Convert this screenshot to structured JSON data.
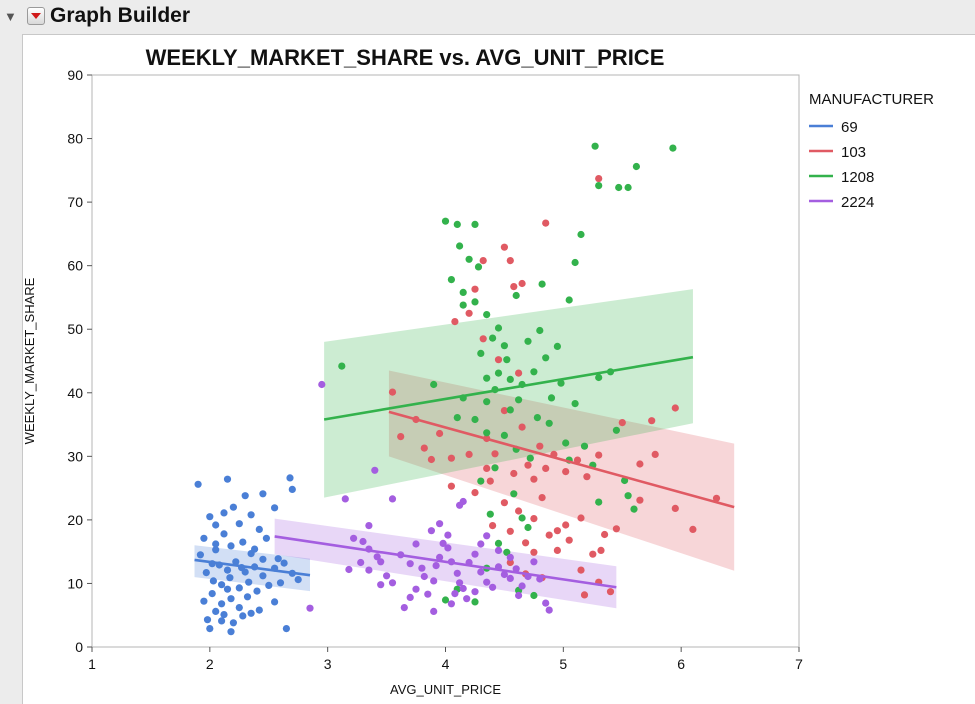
{
  "app": {
    "title": "Graph Builder"
  },
  "colors": {
    "69": "#4a7fd6",
    "103": "#e05a63",
    "1208": "#33b24c",
    "2224": "#a45ee0"
  },
  "chart_data": {
    "type": "scatter",
    "title": "WEEKLY_MARKET_SHARE vs. AVG_UNIT_PRICE",
    "xlabel": "AVG_UNIT_PRICE",
    "ylabel": "WEEKLY_MARKET_SHARE",
    "xlim": [
      1,
      7
    ],
    "ylim": [
      0,
      90
    ],
    "xticks": [
      1,
      2,
      3,
      4,
      5,
      6,
      7
    ],
    "yticks": [
      0,
      10,
      20,
      30,
      40,
      50,
      60,
      70,
      80,
      90
    ],
    "grid": false,
    "legend_title": "MANUFACTURER",
    "legend_position": "right",
    "series": [
      {
        "name": "69",
        "color": "#4a7fd6",
        "fit": {
          "x": [
            1.87,
            2.85
          ],
          "y": [
            13.7,
            11.3
          ],
          "band_lower": [
            11,
            8.8
          ],
          "band_upper": [
            16,
            13.9
          ]
        },
        "points": [
          [
            1.9,
            25.6
          ],
          [
            2.15,
            26.4
          ],
          [
            2.3,
            23.8
          ],
          [
            2.45,
            24.1
          ],
          [
            2.55,
            21.9
          ],
          [
            2.68,
            26.6
          ],
          [
            2.7,
            24.8
          ],
          [
            2.0,
            20.5
          ],
          [
            2.05,
            19.2
          ],
          [
            2.12,
            21.1
          ],
          [
            2.2,
            22
          ],
          [
            2.25,
            19.4
          ],
          [
            2.35,
            20.8
          ],
          [
            2.42,
            18.5
          ],
          [
            1.95,
            17.1
          ],
          [
            2.05,
            16.2
          ],
          [
            2.12,
            17.8
          ],
          [
            2.18,
            15.9
          ],
          [
            2.28,
            16.5
          ],
          [
            2.38,
            15.4
          ],
          [
            2.48,
            17.1
          ],
          [
            2.58,
            13.9
          ],
          [
            1.92,
            14.5
          ],
          [
            2.02,
            13.1
          ],
          [
            2.08,
            12.9
          ],
          [
            2.15,
            12.1
          ],
          [
            2.22,
            13.4
          ],
          [
            2.3,
            11.8
          ],
          [
            2.38,
            12.6
          ],
          [
            2.45,
            11.2
          ],
          [
            2.55,
            12.4
          ],
          [
            2.63,
            13.2
          ],
          [
            2.7,
            11.6
          ],
          [
            1.97,
            11.7
          ],
          [
            2.03,
            10.4
          ],
          [
            2.1,
            9.8
          ],
          [
            2.17,
            10.9
          ],
          [
            2.25,
            9.3
          ],
          [
            2.33,
            10.2
          ],
          [
            2.4,
            8.8
          ],
          [
            2.5,
            9.7
          ],
          [
            2.6,
            10.1
          ],
          [
            2.75,
            10.6
          ],
          [
            1.95,
            7.2
          ],
          [
            2.02,
            8.4
          ],
          [
            2.1,
            6.8
          ],
          [
            2.18,
            7.6
          ],
          [
            2.25,
            6.2
          ],
          [
            2.32,
            7.9
          ],
          [
            2.42,
            5.8
          ],
          [
            2.55,
            7.1
          ],
          [
            1.98,
            4.3
          ],
          [
            2.05,
            5.6
          ],
          [
            2.12,
            5.1
          ],
          [
            2.2,
            3.8
          ],
          [
            2.28,
            4.9
          ],
          [
            2.35,
            5.3
          ],
          [
            2.18,
            2.4
          ],
          [
            2.0,
            2.9
          ],
          [
            2.1,
            4.1
          ],
          [
            2.65,
            2.9
          ],
          [
            2.05,
            15.3
          ],
          [
            2.35,
            14.7
          ],
          [
            2.45,
            13.8
          ],
          [
            2.15,
            9.1
          ],
          [
            2.27,
            12.5
          ]
        ]
      },
      {
        "name": "103",
        "color": "#e05a63",
        "fit": {
          "x": [
            3.52,
            6.45
          ],
          "y": [
            37,
            22
          ],
          "band_lower": [
            30,
            12
          ],
          "band_upper": [
            43.5,
            32
          ]
        },
        "points": [
          [
            4.08,
            51.2
          ],
          [
            4.2,
            52.5
          ],
          [
            4.25,
            56.3
          ],
          [
            4.32,
            60.8
          ],
          [
            4.5,
            62.9
          ],
          [
            4.55,
            60.8
          ],
          [
            4.65,
            57.2
          ],
          [
            4.85,
            66.7
          ],
          [
            4.58,
            56.7
          ],
          [
            4.32,
            48.5
          ],
          [
            4.45,
            45.2
          ],
          [
            4.62,
            43.1
          ],
          [
            5.3,
            73.7
          ],
          [
            3.55,
            40.1
          ],
          [
            3.75,
            35.8
          ],
          [
            3.62,
            33.1
          ],
          [
            3.95,
            33.6
          ],
          [
            3.82,
            31.3
          ],
          [
            4.05,
            29.7
          ],
          [
            4.2,
            30.3
          ],
          [
            4.35,
            28.1
          ],
          [
            4.42,
            30.4
          ],
          [
            4.58,
            27.3
          ],
          [
            4.7,
            28.6
          ],
          [
            4.75,
            26.4
          ],
          [
            4.85,
            28.1
          ],
          [
            4.92,
            30.3
          ],
          [
            5.02,
            27.6
          ],
          [
            5.12,
            29.4
          ],
          [
            5.2,
            26.8
          ],
          [
            5.3,
            30.2
          ],
          [
            4.38,
            26.1
          ],
          [
            4.25,
            24.3
          ],
          [
            4.5,
            22.7
          ],
          [
            4.62,
            21.4
          ],
          [
            4.75,
            20.2
          ],
          [
            4.82,
            23.5
          ],
          [
            4.95,
            18.3
          ],
          [
            5.02,
            19.2
          ],
          [
            5.15,
            20.3
          ],
          [
            4.4,
            19.1
          ],
          [
            4.55,
            18.2
          ],
          [
            4.68,
            16.4
          ],
          [
            4.75,
            14.9
          ],
          [
            4.88,
            17.6
          ],
          [
            5.05,
            16.8
          ],
          [
            5.25,
            14.6
          ],
          [
            5.32,
            15.2
          ],
          [
            4.55,
            13.3
          ],
          [
            4.68,
            11.5
          ],
          [
            4.82,
            10.9
          ],
          [
            4.95,
            15.2
          ],
          [
            5.15,
            12.1
          ],
          [
            5.45,
            18.6
          ],
          [
            5.5,
            35.3
          ],
          [
            5.75,
            35.6
          ],
          [
            5.95,
            37.6
          ],
          [
            5.78,
            30.3
          ],
          [
            5.65,
            28.8
          ],
          [
            5.65,
            23.1
          ],
          [
            5.95,
            21.8
          ],
          [
            6.1,
            18.5
          ],
          [
            6.3,
            23.4
          ],
          [
            5.35,
            17.7
          ],
          [
            5.4,
            8.7
          ],
          [
            5.18,
            8.2
          ],
          [
            5.3,
            10.2
          ],
          [
            4.05,
            25.3
          ],
          [
            4.35,
            32.8
          ],
          [
            4.65,
            34.6
          ],
          [
            4.5,
            37.2
          ],
          [
            4.8,
            31.6
          ],
          [
            3.88,
            29.5
          ]
        ]
      },
      {
        "name": "1208",
        "color": "#33b24c",
        "fit": {
          "x": [
            2.97,
            6.1
          ],
          "y": [
            35.8,
            45.6
          ],
          "band_lower": [
            23.5,
            35.2
          ],
          "band_upper": [
            48,
            56.3
          ]
        },
        "points": [
          [
            3.12,
            44.2
          ],
          [
            4.0,
            67
          ],
          [
            4.1,
            66.5
          ],
          [
            4.25,
            66.5
          ],
          [
            4.12,
            63.1
          ],
          [
            4.2,
            61
          ],
          [
            4.28,
            59.8
          ],
          [
            4.05,
            57.8
          ],
          [
            4.15,
            55.8
          ],
          [
            4.25,
            54.3
          ],
          [
            4.15,
            53.8
          ],
          [
            4.35,
            52.3
          ],
          [
            4.45,
            50.2
          ],
          [
            4.6,
            55.3
          ],
          [
            4.82,
            57.1
          ],
          [
            4.5,
            47.4
          ],
          [
            4.4,
            48.6
          ],
          [
            4.3,
            46.2
          ],
          [
            4.52,
            45.2
          ],
          [
            4.45,
            43.1
          ],
          [
            4.35,
            42.3
          ],
          [
            4.55,
            42.1
          ],
          [
            4.65,
            41.3
          ],
          [
            4.75,
            43.3
          ],
          [
            4.85,
            45.5
          ],
          [
            4.95,
            47.3
          ],
          [
            5.05,
            54.6
          ],
          [
            5.1,
            60.5
          ],
          [
            5.15,
            64.9
          ],
          [
            4.8,
            49.8
          ],
          [
            4.7,
            48.1
          ],
          [
            4.9,
            39.2
          ],
          [
            4.98,
            41.5
          ],
          [
            5.1,
            38.3
          ],
          [
            4.35,
            38.6
          ],
          [
            4.42,
            40.5
          ],
          [
            4.55,
            37.3
          ],
          [
            4.62,
            38.9
          ],
          [
            4.78,
            36.1
          ],
          [
            4.88,
            35.2
          ],
          [
            4.5,
            33.3
          ],
          [
            4.6,
            31.1
          ],
          [
            4.72,
            29.7
          ],
          [
            4.42,
            28.2
          ],
          [
            4.3,
            26.1
          ],
          [
            4.58,
            24.1
          ],
          [
            4.65,
            20.3
          ],
          [
            4.7,
            18.8
          ],
          [
            4.45,
            16.3
          ],
          [
            4.38,
            20.9
          ],
          [
            4.52,
            14.9
          ],
          [
            4.35,
            12.4
          ],
          [
            4.62,
            8.9
          ],
          [
            4.75,
            8.1
          ],
          [
            4.1,
            9.1
          ],
          [
            4.25,
            7.1
          ],
          [
            4.0,
            7.4
          ],
          [
            3.9,
            41.3
          ],
          [
            4.15,
            39.2
          ],
          [
            4.25,
            35.8
          ],
          [
            4.35,
            33.7
          ],
          [
            4.1,
            36.1
          ],
          [
            5.27,
            78.8
          ],
          [
            5.3,
            72.6
          ],
          [
            5.47,
            72.3
          ],
          [
            5.55,
            72.3
          ],
          [
            5.62,
            75.6
          ],
          [
            5.93,
            78.5
          ],
          [
            5.3,
            42.4
          ],
          [
            5.4,
            43.3
          ],
          [
            5.45,
            34.1
          ],
          [
            5.52,
            26.2
          ],
          [
            5.55,
            23.8
          ],
          [
            5.6,
            21.7
          ],
          [
            5.25,
            28.6
          ],
          [
            5.3,
            22.8
          ],
          [
            5.02,
            32.1
          ],
          [
            5.18,
            31.6
          ],
          [
            5.05,
            29.4
          ]
        ]
      },
      {
        "name": "2224",
        "color": "#a45ee0",
        "fit": {
          "x": [
            2.55,
            5.45
          ],
          "y": [
            17.4,
            9.4
          ],
          "band_lower": [
            14.6,
            6.1
          ],
          "band_upper": [
            20.2,
            12.7
          ]
        },
        "points": [
          [
            2.95,
            41.3
          ],
          [
            3.15,
            23.3
          ],
          [
            3.4,
            27.8
          ],
          [
            3.55,
            23.3
          ],
          [
            3.22,
            17.1
          ],
          [
            3.3,
            16.6
          ],
          [
            3.35,
            15.4
          ],
          [
            3.42,
            14.2
          ],
          [
            3.28,
            13.3
          ],
          [
            3.35,
            12.1
          ],
          [
            3.45,
            13.4
          ],
          [
            3.5,
            11.2
          ],
          [
            3.45,
            9.8
          ],
          [
            3.55,
            10.1
          ],
          [
            3.62,
            14.5
          ],
          [
            3.7,
            13.1
          ],
          [
            3.75,
            16.2
          ],
          [
            3.8,
            12.4
          ],
          [
            3.82,
            11.1
          ],
          [
            3.75,
            9.1
          ],
          [
            3.7,
            7.8
          ],
          [
            3.85,
            8.3
          ],
          [
            3.9,
            10.4
          ],
          [
            3.92,
            12.8
          ],
          [
            3.95,
            14.1
          ],
          [
            3.98,
            16.3
          ],
          [
            4.02,
            15.6
          ],
          [
            4.05,
            13.4
          ],
          [
            4.1,
            11.6
          ],
          [
            4.12,
            10.1
          ],
          [
            4.15,
            9.2
          ],
          [
            4.08,
            8.4
          ],
          [
            4.18,
            7.6
          ],
          [
            4.2,
            13.3
          ],
          [
            4.25,
            14.6
          ],
          [
            4.3,
            16.2
          ],
          [
            4.35,
            17.5
          ],
          [
            4.3,
            11.8
          ],
          [
            4.35,
            10.2
          ],
          [
            4.4,
            9.4
          ],
          [
            4.45,
            12.6
          ],
          [
            4.5,
            11.4
          ],
          [
            4.55,
            10.8
          ],
          [
            4.6,
            12.3
          ],
          [
            4.65,
            9.6
          ],
          [
            4.7,
            11.1
          ],
          [
            4.75,
            13.4
          ],
          [
            4.8,
            10.7
          ],
          [
            4.62,
            8.1
          ],
          [
            4.85,
            6.9
          ],
          [
            4.88,
            5.8
          ],
          [
            3.88,
            18.3
          ],
          [
            4.02,
            17.6
          ],
          [
            3.95,
            19.4
          ],
          [
            4.12,
            22.3
          ],
          [
            4.15,
            22.9
          ],
          [
            3.9,
            5.6
          ],
          [
            3.65,
            6.2
          ],
          [
            4.05,
            6.8
          ],
          [
            3.35,
            19.1
          ],
          [
            3.18,
            12.2
          ],
          [
            4.45,
            15.2
          ],
          [
            4.55,
            14.1
          ],
          [
            4.25,
            8.7
          ],
          [
            2.85,
            6.1
          ]
        ]
      }
    ]
  }
}
